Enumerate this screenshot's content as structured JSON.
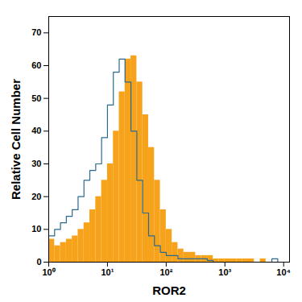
{
  "chart_data": {
    "type": "histogram",
    "x_label": "ROR2",
    "y_label": "Relative Cell Number",
    "log": "x",
    "xlim": [
      1,
      12589
    ],
    "xticks": [
      {
        "value": 1,
        "label": "10⁰"
      },
      {
        "value": 10,
        "label": "10¹"
      },
      {
        "value": 100,
        "label": "10²"
      },
      {
        "value": 1000,
        "label": "10³"
      },
      {
        "value": 10000,
        "label": "10⁴"
      }
    ],
    "ylim": [
      0,
      75
    ],
    "yticks": [
      0,
      10,
      20,
      30,
      40,
      50,
      60,
      70
    ],
    "grid": false,
    "bins": [
      1,
      1.259,
      1.585,
      1.995,
      2.512,
      3.162,
      3.981,
      5.012,
      6.31,
      7.943,
      10,
      12.59,
      15.85,
      19.95,
      25.12,
      31.62,
      39.81,
      50.12,
      63.1,
      79.43,
      100,
      125.9,
      158.5,
      199.5,
      251.2,
      316.2,
      398.1,
      501.2,
      631,
      794.3,
      1000,
      1259,
      1585,
      1995,
      2512,
      3162,
      3981,
      5012,
      6310,
      7943,
      10000,
      12589
    ],
    "series": [
      {
        "type": "bar",
        "color": "#f7a21b",
        "values": [
          7,
          5,
          6,
          7,
          8,
          10,
          12,
          16,
          20,
          25,
          30,
          40,
          52,
          62,
          63,
          55,
          45,
          35,
          25,
          16,
          10,
          6,
          4,
          3,
          3,
          2,
          2,
          2,
          1,
          1,
          1,
          1,
          1,
          1,
          1,
          0,
          1,
          0,
          0,
          0,
          0
        ]
      },
      {
        "type": "line",
        "color": "#2b6a8f",
        "values": [
          8,
          10,
          12,
          14,
          16,
          20,
          25,
          28,
          30,
          38,
          48,
          58,
          62,
          55,
          40,
          25,
          15,
          8,
          5,
          3,
          2,
          2,
          1,
          1,
          1,
          1,
          1,
          0.5,
          0,
          0,
          0,
          0,
          0,
          0,
          0,
          0,
          0,
          0,
          1,
          0,
          0
        ]
      }
    ]
  }
}
